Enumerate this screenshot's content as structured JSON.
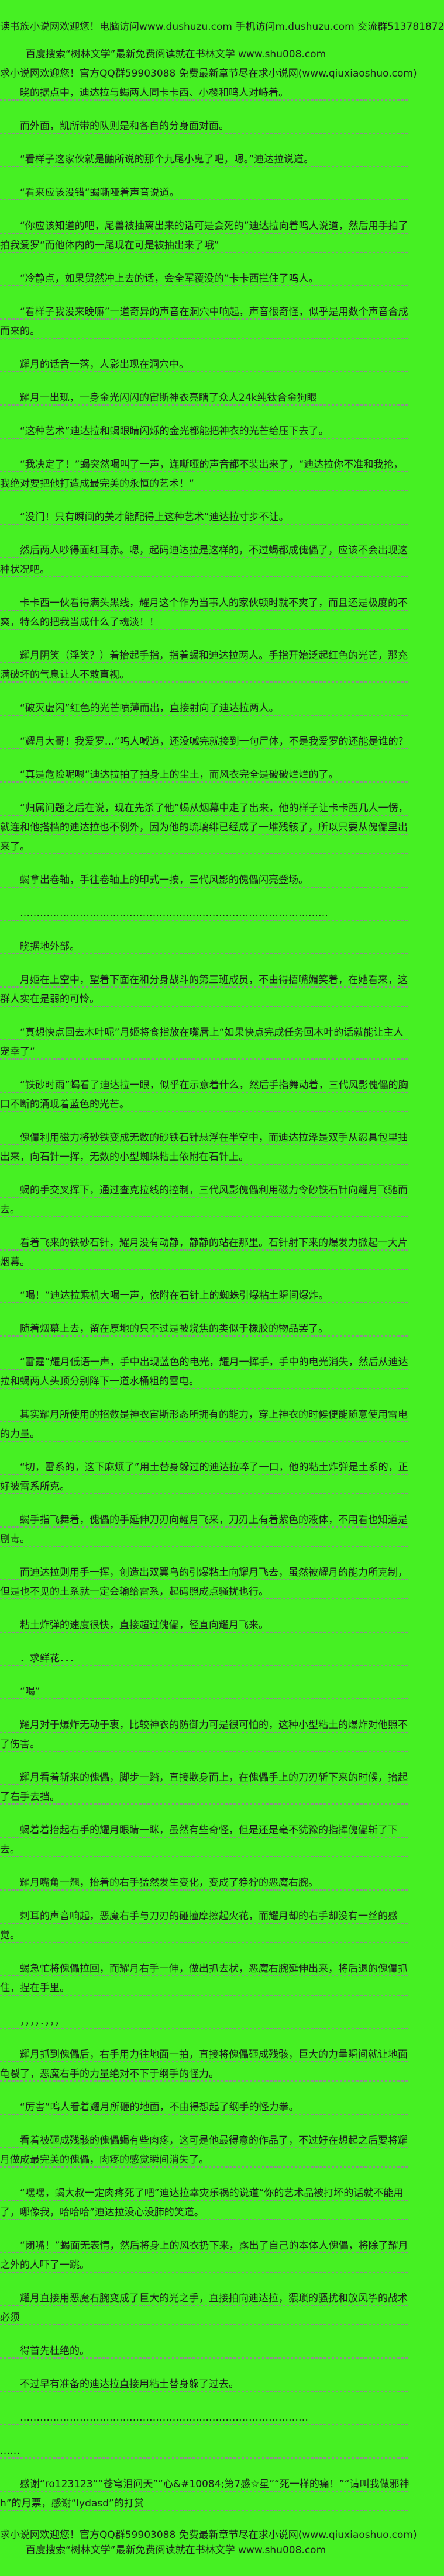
{
  "colors": {
    "background": "#46F023",
    "text": "#1C1C1C",
    "rule": "#8F8F8F"
  },
  "header": {
    "line1": "读书族小说网欢迎您！电脑访问www.dushuzu.com 手机访问m.dushuzu.com 交流群513781872",
    "line2": "百度搜索“树林文学”最新免费阅读就在书林文学 www.shu008.com",
    "line3": "求小说网欢迎您！官方QQ群59903088 免费最新章节尽在求小说网(www.qiuxiaoshuo.com)"
  },
  "story": {
    "paragraphs": [
      {
        "name": "story-paragraph",
        "text": "晓的据点中，迪达拉与蝎两人同卡卡西、小樱和鸣人对峙着。"
      },
      {
        "name": "story-paragraph",
        "text": "而外面，凯所带的队则是和各自的分身面对面。"
      },
      {
        "name": "story-paragraph",
        "text": "“看样子这家伙就是鼬所说的那个九尾小鬼了吧，嗯。”迪达拉说道。"
      },
      {
        "name": "story-paragraph",
        "text": "“看来应该没错”蝎嘶哑着声音说道。"
      },
      {
        "name": "story-paragraph",
        "text": "“你应该知道的吧，尾兽被抽离出来的话可是会死的”迪达拉向着鸣人说道，然后用手拍了拍我爱罗“而他体内的一尾现在可是被抽出来了哦”"
      },
      {
        "name": "story-paragraph",
        "text": "“冷静点，如果贸然冲上去的话，会全军覆没的”卡卡西拦住了鸣人。"
      },
      {
        "name": "story-paragraph",
        "text": "“看样子我没来晚嘛”一道奇异的声音在洞穴中响起，声音很奇怪，似乎是用数个声音合成而来的。"
      },
      {
        "name": "story-paragraph",
        "text": "耀月的话音一落，人影出现在洞穴中。"
      },
      {
        "name": "story-paragraph",
        "text": "耀月一出现，一身金光闪闪的宙斯神衣亮瞎了众人24k纯钛合金狗眼"
      },
      {
        "name": "story-paragraph",
        "text": "“这种艺术”迪达拉和蝎眼睛闪烁的金光都能把神衣的光芒给压下去了。"
      },
      {
        "name": "story-paragraph",
        "text": "“我决定了！”蝎突然喝叫了一声，连嘶哑的声音都不装出来了，“迪达拉你不准和我抢，我绝对要把他打造成最完美的永恒的艺术！”"
      },
      {
        "name": "story-paragraph",
        "text": "“没门！只有瞬间的美才能配得上这种艺术”迪达拉寸步不让。"
      },
      {
        "name": "story-paragraph",
        "text": "然后两人吵得面红耳赤。嗯，起码迪达拉是这样的，不过蝎都成傀儡了，应该不会出现这种状况吧。"
      },
      {
        "name": "story-paragraph",
        "text": "卡卡西一伙看得满头黑线，耀月这个作为当事人的家伙顿时就不爽了，而且还是极度的不爽，特么的把我当成什么了魂淡！！"
      },
      {
        "name": "story-paragraph",
        "text": "耀月阴笑（淫笑？）着抬起手指，指着蝎和迪达拉两人。手指开始泛起红色的光芒，那充满破坏的气息让人不敢直视。"
      },
      {
        "name": "story-paragraph",
        "text": "“破灭虚闪”红色的光芒喷薄而出，直接射向了迪达拉两人。"
      },
      {
        "name": "story-paragraph",
        "text": "“耀月大哥！我爱罗…”鸣人喊道，还没喊完就接到一句尸体，不是我爱罗的还能是谁的？"
      },
      {
        "name": "story-paragraph",
        "text": "“真是危险呢嗯”迪达拉拍了拍身上的尘土，而风衣完全是破破烂烂的了。"
      },
      {
        "name": "story-paragraph",
        "text": "“归属问题之后在说，现在先杀了他”蝎从烟幕中走了出来，他的样子让卡卡西几人一愣，就连和他搭档的迪达拉也不例外，因为他的琉璃绯已经成了一堆残骸了，所以只要从傀儡里出来了。"
      },
      {
        "name": "story-paragraph",
        "text": "蝎拿出卷轴，手往卷轴上的印式一按，三代风影的傀儡闪亮登场。"
      },
      {
        "name": "separator-dots",
        "text": "…………………………………………………………………………………"
      },
      {
        "name": "story-paragraph",
        "text": "晓据地外部。"
      },
      {
        "name": "story-paragraph",
        "text": "月姬在上空中，望着下面在和分身战斗的第三班成员，不由得捂嘴媚笑着，在她看来，这群人实在是弱的可怜。"
      },
      {
        "name": "story-paragraph",
        "text": "“真想快点回去木叶呢”月姬将食指放在嘴唇上“如果快点完成任务回木叶的话就能让主人宠幸了”"
      },
      {
        "name": "story-paragraph",
        "text": "“铁砂时雨”蝎看了迪达拉一眼，似乎在示意着什么，然后手指舞动着，三代风影傀儡的胸口不断的涌现着蓝色的光芒。"
      },
      {
        "name": "story-paragraph",
        "text": "傀儡利用磁力将砂铁变成无数的砂铁石针悬浮在半空中，而迪达拉泽是双手从忍具包里抽出来，向石针一挥，无数的小型蜘蛛粘土依附在石针上。"
      },
      {
        "name": "story-paragraph",
        "text": "蝎的手交叉挥下，通过查克拉线的控制，三代风影傀儡利用磁力令砂铁石针向耀月飞驰而去。"
      },
      {
        "name": "story-paragraph",
        "text": "看着飞来的铁砂石针，耀月没有动静，静静的站在那里。石针射下来的爆发力掀起一大片烟幕。"
      },
      {
        "name": "story-paragraph",
        "text": "“喝！”迪达拉乘机大喝一声，依附在石针上的蜘蛛引爆粘土瞬间爆炸。"
      },
      {
        "name": "story-paragraph",
        "text": "随着烟幕上去，留在原地的只不过是被烧焦的类似于橡胶的物品罢了。"
      },
      {
        "name": "story-paragraph",
        "text": "“雷霆”耀月低语一声，手中出现蓝色的电光，耀月一挥手，手中的电光消失，然后从迪达拉和蝎两人头顶分别降下一道水桶粗的雷电。"
      },
      {
        "name": "story-paragraph",
        "text": "其实耀月所使用的招数是神衣宙斯形态所拥有的能力，穿上神衣的时候便能随意使用雷电的力量。"
      },
      {
        "name": "story-paragraph",
        "text": "“切，雷系的，这下麻烦了”用土替身躲过的迪达拉啐了一口，他的粘土炸弹是土系的，正好被雷系所克。"
      },
      {
        "name": "story-paragraph",
        "text": "蝎手指飞舞着，傀儡的手延伸刀刃向耀月飞来，刀刃上有着紫色的液体，不用看也知道是剧毒。"
      },
      {
        "name": "story-paragraph",
        "text": "而迪达拉则用手一挥，创造出双翼鸟的引爆粘土向耀月飞去，虽然被耀月的能力所克制，但是也不见的土系就一定会输给雷系，起码照成点骚扰也行。"
      },
      {
        "name": "story-paragraph",
        "text": "粘土炸弹的速度很快，直接超过傀儡，径直向耀月飞来。"
      },
      {
        "name": "flower-request-line",
        "text": "．求鲜花．．．"
      },
      {
        "name": "story-paragraph",
        "text": "“喝”"
      },
      {
        "name": "story-paragraph",
        "text": "耀月对于爆炸无动于衷，比较神衣的防御力可是很可怕的，这种小型粘土的爆炸对他照不了伤害。"
      },
      {
        "name": "story-paragraph",
        "text": "耀月看着斩来的傀儡，脚步一踏，直接欺身而上，在傀儡手上的刀刃斩下来的时候，抬起了右手去挡。"
      },
      {
        "name": "story-paragraph",
        "text": "蝎着着抬起右手的耀月眼睛一眯，虽然有些奇怪，但是还是毫不犹豫的指挥傀儡斩了下去。"
      },
      {
        "name": "story-paragraph",
        "text": "耀月嘴角一翘，抬着的右手猛然发生变化，变成了狰狞的恶魔右腕。"
      },
      {
        "name": "story-paragraph",
        "text": "刺耳的声音响起，恶魔右手与刀刃的碰撞摩擦起火花，而耀月却的右手却没有一丝的感觉。"
      },
      {
        "name": "story-paragraph",
        "text": "蝎急忙将傀儡拉回，而耀月右手一伸，做出抓去状，恶魔右腕延伸出来，将后退的傀儡抓住，捏在手里。"
      },
      {
        "name": "noise-line",
        "text": "，，，，．，，，"
      },
      {
        "name": "story-paragraph",
        "text": "耀月抓到傀儡后，右手用力往地面一拍，直接将傀儡砸成残骸，巨大的力量瞬间就让地面龟裂了，恶魔右手的力量绝对不下于纲手的怪力。"
      },
      {
        "name": "story-paragraph",
        "text": "“厉害”鸣人看着耀月所砸的地面，不由得想起了纲手的怪力拳。"
      },
      {
        "name": "story-paragraph",
        "text": "看着被砸成残骸的傀儡蝎有些肉疼，这可是他最得意的作品了，不过好在想起之后要将耀月做成最完美的傀儡，肉疼的感觉瞬间消失了。"
      },
      {
        "name": "story-paragraph",
        "text": "“嘿嘿，蝎大叔一定肉疼死了吧”迪达拉幸灾乐祸的说道“你的艺术品被打坏的话就不能用了，哪像我，哈哈哈”迪达拉没心没肺的笑道。"
      },
      {
        "name": "story-paragraph",
        "text": "“闭嘴！”蝎面无表情，然后将身上的风衣扔下来，露出了自己的本体人傀儡，将除了耀月之外的人吓了一跳。"
      },
      {
        "name": "story-paragraph",
        "text": "耀月直接用恶魔右腕变成了巨大的光之手，直接拍向迪达拉，猥琐的骚扰和放风筝的战术必须"
      },
      {
        "name": "story-paragraph",
        "text": "得首先杜绝的。"
      },
      {
        "name": "story-paragraph",
        "text": "不过早有准备的迪达拉直接用粘土替身躲了过去。"
      },
      {
        "name": "separator-dots",
        "text": "……………………………………………………………………………"
      },
      {
        "name": "separator-dots",
        "flush": true,
        "text": "……"
      },
      {
        "name": "thanks-note",
        "text": "感谢“ro123123”“苍穹泪问天”“心&#10084;第7感☆星”“死一样的痛！”“请叫我做邪神h”的月票，感谢“lydasd”的打赏"
      }
    ]
  },
  "footer": {
    "line1": "求小说网欢迎您！官方QQ群59903088 免费最新章节尽在求小说网(www.qiuxiaoshuo.com)",
    "line2": "百度搜索“树林文学”最新免费阅读就在书林文学 www.shu008.com"
  }
}
